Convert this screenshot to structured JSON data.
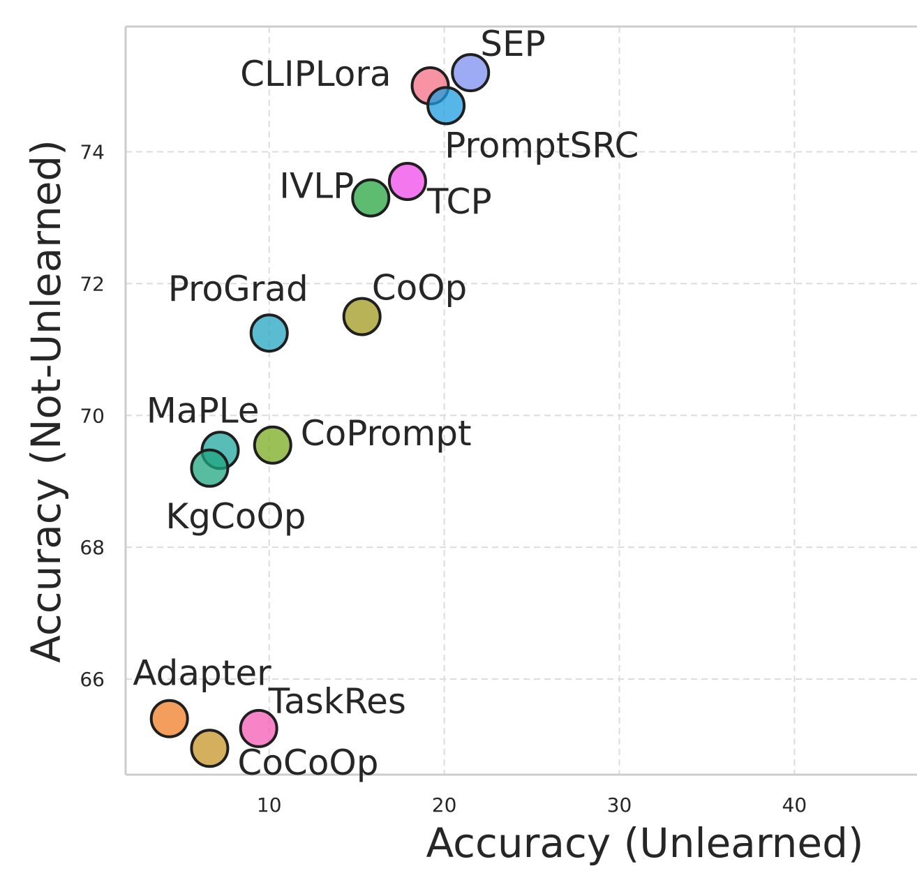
{
  "chart_data": {
    "type": "scatter",
    "title": "",
    "xlabel": "Accuracy (Unlearned)",
    "ylabel": "Accuracy (Not-Unlearned)",
    "xlim": [
      1.8,
      47.0
    ],
    "ylim": [
      64.55,
      75.9
    ],
    "xticks": [
      10,
      20,
      30,
      40
    ],
    "yticks": [
      66,
      68,
      70,
      72,
      74
    ],
    "grid": true,
    "legend": "none",
    "points": [
      {
        "label": "SEP",
        "x": 21.5,
        "y": 75.2,
        "color": "#7b8ff0"
      },
      {
        "label": "CLIPLora",
        "x": 19.2,
        "y": 75.0,
        "color": "#f56f86"
      },
      {
        "label": "PromptSRC",
        "x": 20.1,
        "y": 74.7,
        "color": "#1f9ee0"
      },
      {
        "label": "TCP",
        "x": 17.9,
        "y": 73.55,
        "color": "#ef4ae8"
      },
      {
        "label": "IVLP",
        "x": 15.8,
        "y": 73.3,
        "color": "#27a540"
      },
      {
        "label": "CoOp",
        "x": 15.3,
        "y": 71.5,
        "color": "#a1991f"
      },
      {
        "label": "ProGrad",
        "x": 10.0,
        "y": 71.25,
        "color": "#24a6c2"
      },
      {
        "label": "MaPLe",
        "x": 7.2,
        "y": 69.47,
        "color": "#20a79f"
      },
      {
        "label": "KgCoOp",
        "x": 6.6,
        "y": 69.2,
        "color": "#20a680"
      },
      {
        "label": "CoPrompt",
        "x": 10.2,
        "y": 69.55,
        "color": "#78ab1f"
      },
      {
        "label": "Adapter",
        "x": 4.3,
        "y": 65.4,
        "color": "#ef7d25"
      },
      {
        "label": "CoCoOp",
        "x": 6.6,
        "y": 64.95,
        "color": "#c69427"
      },
      {
        "label": "TaskRes",
        "x": 9.4,
        "y": 65.25,
        "color": "#f35bb4"
      }
    ]
  }
}
